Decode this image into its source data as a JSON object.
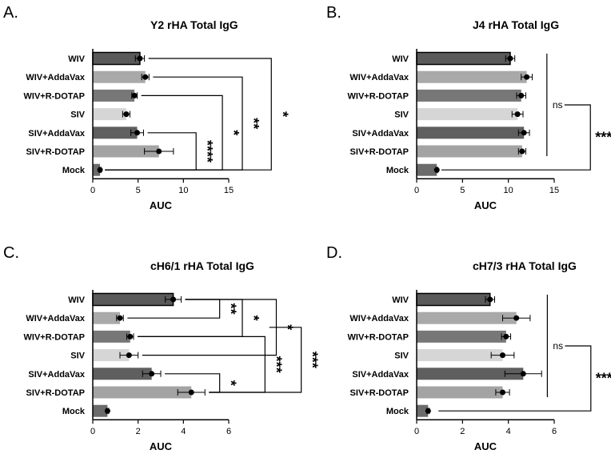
{
  "categories": [
    "WIV",
    "WIV+AddaVax",
    "WIV+R-DOTAP",
    "SIV",
    "SIV+AddaVax",
    "SIV+R-DOTAP",
    "Mock"
  ],
  "bar_colors": [
    "#5a5a5a",
    "#a9a9a9",
    "#777777",
    "#d6d6d6",
    "#5f5f5f",
    "#a3a3a3",
    "#6b6b6b"
  ],
  "chart_data": [
    {
      "panel": "A.",
      "type": "bar",
      "orientation": "horizontal",
      "title": "Y2 rHA Total IgG",
      "xlabel": "AUC",
      "xlim": [
        0,
        15
      ],
      "xticks": [
        0,
        5,
        10,
        15
      ],
      "values": [
        5.2,
        5.8,
        4.6,
        3.7,
        4.9,
        7.3,
        0.8
      ],
      "errors": [
        0.5,
        0.4,
        0.3,
        0.4,
        0.7,
        1.6,
        0.1
      ],
      "comparisons": [
        {
          "label": "*",
          "rows": [
            0,
            6
          ],
          "at": 19.7
        },
        {
          "label": "**",
          "rows": [
            1,
            6
          ],
          "at": 16.5
        },
        {
          "label": "*",
          "rows": [
            2,
            6
          ],
          "at": 14.3
        },
        {
          "label": "****",
          "rows": [
            4,
            6
          ],
          "at": 11.4
        }
      ]
    },
    {
      "panel": "B.",
      "type": "bar",
      "orientation": "horizontal",
      "title": "J4 rHA Total IgG",
      "xlabel": "AUC",
      "xlim": [
        0,
        15
      ],
      "xticks": [
        0,
        5,
        10,
        15
      ],
      "values": [
        10.2,
        12.0,
        11.4,
        11.0,
        11.7,
        11.5,
        2.2
      ],
      "errors": [
        0.5,
        0.6,
        0.5,
        0.6,
        0.6,
        0.4,
        0.1
      ],
      "comparisons": [
        {
          "label": "ns",
          "rows": [
            0,
            5
          ],
          "at": 14.2,
          "type": "group"
        },
        {
          "label": "****",
          "rows": [
            2.5,
            6
          ],
          "at": 17.2,
          "type": "group-vs"
        }
      ]
    },
    {
      "panel": "C.",
      "type": "bar",
      "orientation": "horizontal",
      "title": "cH6/1 rHA Total IgG",
      "xlabel": "AUC",
      "xlim": [
        0,
        6
      ],
      "xticks": [
        0,
        2,
        4,
        6
      ],
      "values": [
        3.55,
        1.2,
        1.65,
        1.6,
        2.6,
        4.35,
        0.65
      ],
      "errors": [
        0.35,
        0.15,
        0.15,
        0.4,
        0.4,
        0.6,
        0.05
      ],
      "comparisons": [
        {
          "label": "**",
          "rows": [
            0,
            1
          ],
          "at": 5.6
        },
        {
          "label": "*",
          "rows": [
            0,
            2
          ],
          "at": 6.6
        },
        {
          "label": "*",
          "rows": [
            0,
            3
          ],
          "at": 8.1
        },
        {
          "label": "***",
          "rows": [
            2,
            5
          ],
          "at": 7.6
        },
        {
          "label": "***",
          "rows": [
            1.5,
            5
          ],
          "at": 9.2
        },
        {
          "label": "*",
          "rows": [
            4,
            5
          ],
          "at": 5.6
        }
      ]
    },
    {
      "panel": "D.",
      "type": "bar",
      "orientation": "horizontal",
      "title": "cH7/3 rHA Total IgG",
      "xlabel": "AUC",
      "xlim": [
        0,
        6
      ],
      "xticks": [
        0,
        2,
        4,
        6
      ],
      "values": [
        3.2,
        4.35,
        3.9,
        3.75,
        4.65,
        3.75,
        0.5
      ],
      "errors": [
        0.2,
        0.6,
        0.2,
        0.5,
        0.8,
        0.3,
        0.05
      ],
      "comparisons": [
        {
          "label": "ns",
          "rows": [
            0,
            5
          ],
          "at": 5.7,
          "type": "group"
        },
        {
          "label": "****",
          "rows": [
            2.5,
            6
          ],
          "at": 6.9,
          "type": "group-vs"
        }
      ]
    }
  ]
}
